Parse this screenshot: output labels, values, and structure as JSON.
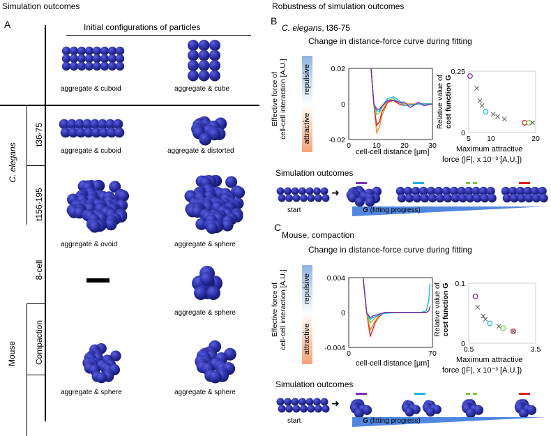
{
  "left": {
    "title": "Simulation outcomes",
    "panel": "A",
    "header": "Initial configurations of particles",
    "species_celegans": "C. elegans",
    "species_mouse": "Mouse",
    "rows": {
      "t36_75": "t36-75",
      "t156_195": "t156-195",
      "cell8": "8-cell",
      "compaction": "Compaction"
    },
    "labels": {
      "r0c0": "aggregate & cuboid",
      "r0c1": "aggregate & cube",
      "r1c0": "aggregate & cuboid",
      "r1c1": "aggregate & distorted",
      "r2c0": "aggregate & ovoid",
      "r2c1": "aggregate & sphere",
      "r3c1": "aggregate & sphere",
      "r4c0": "aggregate & sphere",
      "r4c1": "aggregate & sphere"
    }
  },
  "right": {
    "title": "Robustness of simulation outcomes",
    "panelB": {
      "panel": "B",
      "subtitle_species": "C. elegans",
      "subtitle_rest": ", t36-75",
      "curve_title": "Change in distance-force curve during fitting",
      "ylabel_line1": "Effective force of",
      "ylabel_line2": "cell-cell interaction [A.U.]",
      "repulsive": "repulsive",
      "attractive": "attractive",
      "yticks": [
        "0.02",
        "0",
        "-0.02"
      ],
      "xticks": [
        "0",
        "10",
        "20",
        "30"
      ],
      "xlabel": "cell-cell distance [μm]",
      "scatter_ylabel_line1": "Relative value of",
      "scatter_ylabel_line2": "cost function G",
      "scatter_yticks": [
        "0.25",
        "0"
      ],
      "scatter_xticks": [
        "5",
        "10",
        "20"
      ],
      "scatter_xlabel_line1": "Maximum attractive",
      "scatter_xlabel_line2": "force (|F|, x 10⁻³ [A.U.])",
      "outcomes_title": "Simulation outcomes",
      "start": "start",
      "progress": "G (fitting progress)"
    },
    "panelC": {
      "panel": "C",
      "subtitle": "Mouse, compaction",
      "curve_title": "Change in distance-force curve during fitting",
      "ylabel_line1": "Effective force of",
      "ylabel_line2": "cell-cell interaction [A.U.]",
      "repulsive": "repulsive",
      "attractive": "attractive",
      "yticks": [
        "0.004",
        "0",
        "-0.004"
      ],
      "xticks": [
        "0",
        "70"
      ],
      "xlabel": "cell-cell distance [μm]",
      "scatter_ylabel_line1": "Relative value of",
      "scatter_ylabel_line2": "cost function G",
      "scatter_yticks": [
        "0.1",
        "0"
      ],
      "scatter_xticks": [
        "0.5",
        "3.5"
      ],
      "scatter_xlabel_line1": "Maximum attractive",
      "scatter_xlabel_line2": "force (|F|, x 10⁻³ [A.U.])",
      "outcomes_title": "Simulation outcomes",
      "start": "start",
      "progress": "G (fitting progress)"
    }
  },
  "colors": {
    "particle": "#2b2fa3",
    "purple": "#7b2fb5",
    "cyan": "#1ab3e6",
    "green": "#7cc943",
    "red": "#e02020",
    "orange": "#f08a2c",
    "repulsive_bg": "#8fb4e3",
    "attractive_bg": "#f3a277",
    "progress": "#4f86e0"
  },
  "chart_data": [
    {
      "type": "line",
      "title": "Change in distance-force curve during fitting",
      "xlabel": "cell-cell distance [μm]",
      "ylabel": "Effective force of cell-cell interaction [A.U.]",
      "xlim": [
        0,
        30
      ],
      "ylim": [
        -0.02,
        0.02
      ],
      "series": [
        {
          "color": "orange",
          "x": [
            8,
            9,
            10,
            11,
            12,
            14,
            16,
            18,
            20,
            25,
            30
          ],
          "y": [
            0.02,
            0.0,
            -0.016,
            -0.013,
            -0.006,
            0.001,
            0.002,
            0.001,
            0.0,
            0.0,
            0.0
          ]
        },
        {
          "color": "red",
          "x": [
            8,
            9,
            10,
            11,
            12,
            14,
            16,
            18,
            20,
            25,
            30
          ],
          "y": [
            0.02,
            0.0,
            -0.012,
            -0.01,
            -0.004,
            0.001,
            0.002,
            0.0,
            -0.001,
            0.0,
            0.0
          ]
        },
        {
          "color": "green",
          "x": [
            8,
            9,
            10,
            11,
            12,
            14,
            16,
            18,
            20,
            25,
            30
          ],
          "y": [
            0.02,
            0.0,
            -0.006,
            -0.005,
            -0.002,
            0.002,
            0.003,
            0.001,
            -0.001,
            0.0,
            0.0
          ]
        },
        {
          "color": "cyan",
          "x": [
            8,
            9,
            10,
            11,
            12,
            14,
            16,
            18,
            20,
            25,
            30
          ],
          "y": [
            0.02,
            0.0,
            -0.004,
            -0.004,
            -0.001,
            0.003,
            0.004,
            0.002,
            -0.001,
            0.0,
            0.0
          ]
        },
        {
          "color": "purple",
          "x": [
            8,
            9,
            10,
            11,
            12,
            14,
            16,
            18,
            20,
            22,
            25,
            27,
            30
          ],
          "y": [
            0.02,
            0.0,
            -0.003,
            -0.003,
            -0.001,
            0.002,
            0.002,
            0.001,
            0.001,
            -0.002,
            0.001,
            -0.001,
            0.0
          ]
        }
      ]
    },
    {
      "type": "scatter",
      "xlabel": "Maximum attractive force (|F|, x 10⁻³ [A.U.])",
      "ylabel": "Relative value of cost function G",
      "xlim": [
        5,
        20
      ],
      "ylim": [
        0,
        0.25
      ],
      "points": [
        {
          "x": 5.3,
          "y": 0.23,
          "marker": "circle",
          "color": "purple"
        },
        {
          "x": 6.8,
          "y": 0.18,
          "marker": "x"
        },
        {
          "x": 7.5,
          "y": 0.13,
          "marker": "x"
        },
        {
          "x": 8.0,
          "y": 0.11,
          "marker": "x"
        },
        {
          "x": 8.8,
          "y": 0.085,
          "marker": "circle",
          "color": "cyan"
        },
        {
          "x": 10.5,
          "y": 0.075,
          "marker": "x"
        },
        {
          "x": 11.5,
          "y": 0.065,
          "marker": "x"
        },
        {
          "x": 13.0,
          "y": 0.055,
          "marker": "x"
        },
        {
          "x": 17.5,
          "y": 0.04,
          "marker": "circle",
          "color": "red"
        },
        {
          "x": 18.5,
          "y": 0.04,
          "marker": "circle",
          "color": "green"
        },
        {
          "x": 19.3,
          "y": 0.04,
          "marker": "x"
        }
      ]
    },
    {
      "type": "line",
      "title": "Change in distance-force curve during fitting",
      "xlabel": "cell-cell distance [μm]",
      "ylabel": "Effective force of cell-cell interaction [A.U.]",
      "xlim": [
        0,
        70
      ],
      "ylim": [
        -0.004,
        0.004
      ],
      "series": [
        {
          "color": "red",
          "x": [
            12,
            15,
            18,
            20,
            22,
            25,
            30,
            40,
            50,
            60,
            65
          ],
          "y": [
            0.004,
            0.0,
            -0.0027,
            -0.002,
            -0.0012,
            -0.0005,
            0.0,
            0.0,
            0.0,
            0.0,
            0.0
          ]
        },
        {
          "color": "orange",
          "x": [
            12,
            15,
            18,
            20,
            22,
            25,
            30,
            40,
            50,
            60,
            65
          ],
          "y": [
            0.004,
            0.0,
            -0.002,
            -0.0015,
            -0.001,
            -0.0004,
            0.0,
            0.0,
            0.0,
            0.0,
            0.0
          ]
        },
        {
          "color": "green",
          "x": [
            12,
            15,
            18,
            20,
            22,
            25,
            30,
            40,
            50,
            60,
            65
          ],
          "y": [
            0.004,
            0.0,
            -0.0012,
            -0.0009,
            -0.0006,
            -0.0003,
            0.0,
            0.0,
            0.0,
            0.0,
            0.0
          ]
        },
        {
          "color": "cyan",
          "x": [
            12,
            15,
            18,
            20,
            25,
            30,
            40,
            50,
            60,
            65,
            67,
            68
          ],
          "y": [
            0.004,
            0.0,
            -0.0008,
            -0.0006,
            -0.0003,
            -0.0001,
            0.0,
            0.0,
            0.0,
            0.0002,
            0.0015,
            0.0033
          ]
        },
        {
          "color": "purple",
          "x": [
            12,
            15,
            18,
            20,
            25,
            30,
            40,
            50,
            60,
            65,
            67,
            68
          ],
          "y": [
            0.004,
            0.0,
            -0.0006,
            -0.0004,
            -0.0002,
            0.0,
            0.0,
            0.0,
            0.0,
            0.0,
            0.0002,
            0.0007
          ]
        }
      ]
    },
    {
      "type": "scatter",
      "xlabel": "Maximum attractive force (|F|, x 10⁻³ [A.U.])",
      "ylabel": "Relative value of cost function G",
      "xlim": [
        0.5,
        3.5
      ],
      "ylim": [
        0,
        0.1
      ],
      "points": [
        {
          "x": 0.8,
          "y": 0.078,
          "marker": "circle",
          "color": "purple"
        },
        {
          "x": 0.9,
          "y": 0.06,
          "marker": "x"
        },
        {
          "x": 1.15,
          "y": 0.045,
          "marker": "x"
        },
        {
          "x": 1.25,
          "y": 0.04,
          "marker": "x"
        },
        {
          "x": 1.45,
          "y": 0.033,
          "marker": "circle",
          "color": "cyan"
        },
        {
          "x": 1.85,
          "y": 0.028,
          "marker": "x"
        },
        {
          "x": 2.05,
          "y": 0.025,
          "marker": "circle",
          "color": "green"
        },
        {
          "x": 2.5,
          "y": 0.02,
          "marker": "circle",
          "color": "red"
        },
        {
          "x": 2.5,
          "y": 0.02,
          "marker": "x"
        }
      ]
    }
  ]
}
